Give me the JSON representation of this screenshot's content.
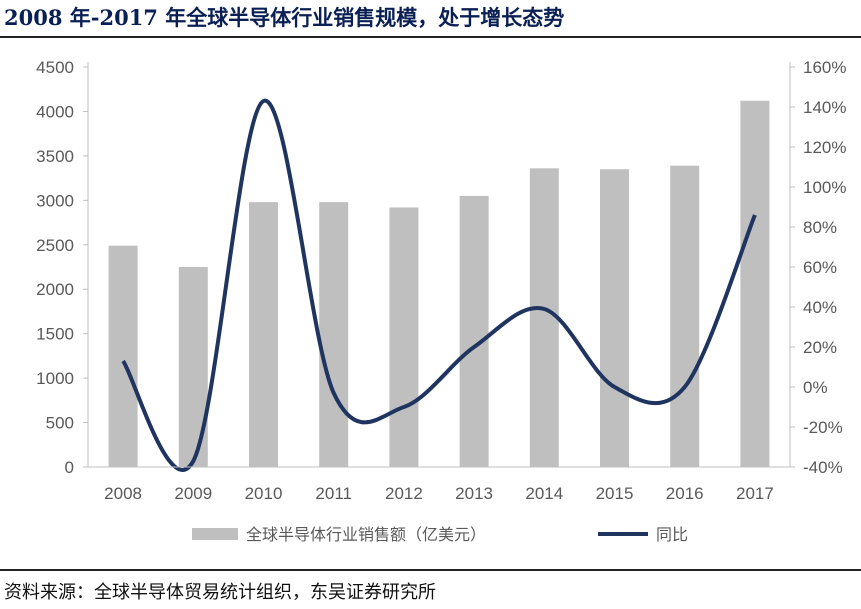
{
  "title": "2008 年-2017 年全球半导体行业销售规模，处于增长态势",
  "source": "资料来源：全球半导体贸易统计组织，东吴证券研究所",
  "chart_data": {
    "type": "bar",
    "categories": [
      "2008",
      "2009",
      "2010",
      "2011",
      "2012",
      "2013",
      "2014",
      "2015",
      "2016",
      "2017"
    ],
    "series": [
      {
        "name": "全球半导体行业销售额（亿美元）",
        "type": "bar",
        "axis": "left",
        "color": "#bfbfbf",
        "values": [
          2490,
          2250,
          2980,
          2980,
          2920,
          3050,
          3360,
          3350,
          3390,
          4120
        ]
      },
      {
        "name": "同比",
        "type": "line",
        "axis": "right",
        "color": "#1f3560",
        "values": [
          13,
          -37,
          143,
          -3,
          -10,
          20,
          39,
          0,
          0,
          86
        ]
      }
    ],
    "left_axis": {
      "min": 0,
      "max": 4500,
      "step": 500,
      "ticks": [
        "0",
        "500",
        "1000",
        "1500",
        "2000",
        "2500",
        "3000",
        "3500",
        "4000",
        "4500"
      ]
    },
    "right_axis": {
      "min": -40,
      "max": 160,
      "step": 20,
      "ticks": [
        "-40%",
        "-20%",
        "0%",
        "20%",
        "40%",
        "60%",
        "80%",
        "100%",
        "120%",
        "140%",
        "160%"
      ]
    },
    "legend_position": "bottom",
    "grid": false
  }
}
